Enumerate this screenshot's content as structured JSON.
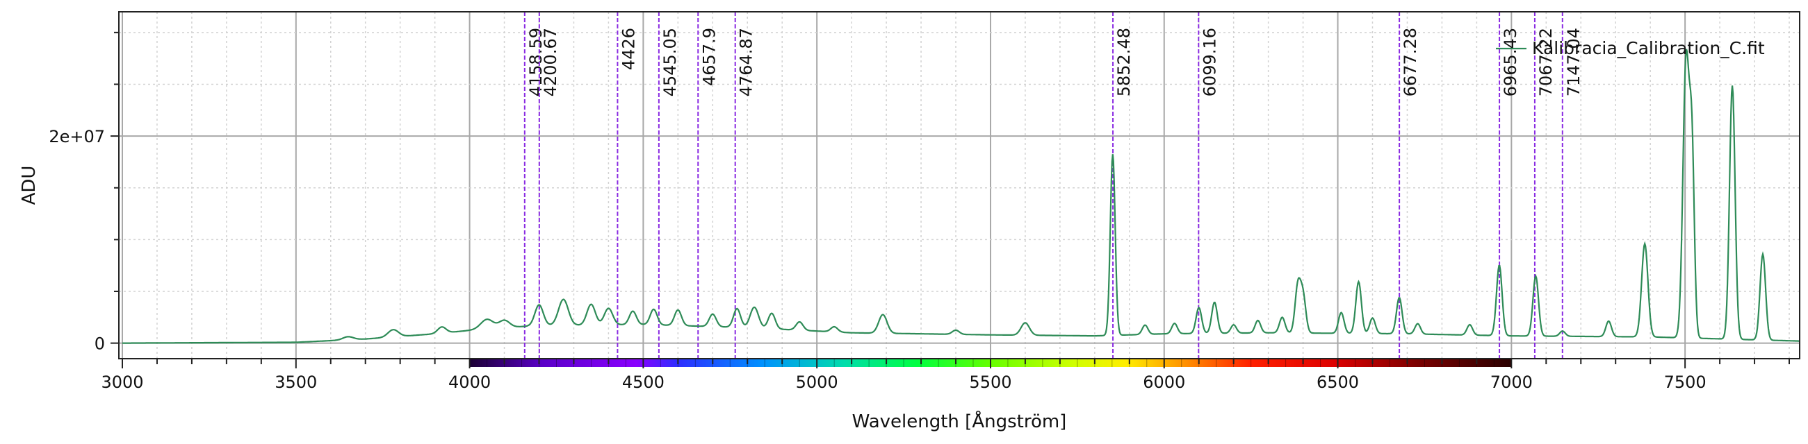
{
  "chart_data": {
    "type": "line",
    "xlabel": "Wavelength [Ångström]",
    "ylabel": "ADU",
    "xlim": [
      2990,
      7830
    ],
    "ylim": [
      -1500000,
      32000000
    ],
    "x_major_ticks": [
      3000,
      3500,
      4000,
      4500,
      5000,
      5500,
      6000,
      6500,
      7000,
      7500
    ],
    "x_tick_labels": [
      "3000",
      "3500",
      "4000",
      "4500",
      "5000",
      "5500",
      "6000",
      "6500",
      "7000",
      "7500"
    ],
    "y_major_ticks": [
      0,
      20000000
    ],
    "y_tick_labels": [
      "0",
      "2e+07"
    ],
    "grid": true,
    "legend_position": "top-right",
    "series": [
      {
        "name": "Kalibracia_Calibration_C.fit",
        "color": "#2e8b57",
        "baseline": [
          [
            3000,
            0
          ],
          [
            3500,
            80000
          ],
          [
            3700,
            400000
          ],
          [
            3900,
            900000
          ],
          [
            4050,
            1400000
          ],
          [
            4200,
            1700000
          ],
          [
            4500,
            1800000
          ],
          [
            4800,
            1500000
          ],
          [
            5100,
            1000000
          ],
          [
            5500,
            800000
          ],
          [
            5800,
            700000
          ],
          [
            6000,
            900000
          ],
          [
            6300,
            1000000
          ],
          [
            6700,
            900000
          ],
          [
            7000,
            700000
          ],
          [
            7400,
            600000
          ],
          [
            7830,
            200000
          ]
        ],
        "peaks": [
          [
            3650,
            300000,
            15
          ],
          [
            3780,
            700000,
            15
          ],
          [
            3920,
            600000,
            12
          ],
          [
            4050,
            900000,
            18
          ],
          [
            4100,
            700000,
            15
          ],
          [
            4200,
            2000000,
            12
          ],
          [
            4270,
            2500000,
            14
          ],
          [
            4350,
            2000000,
            12
          ],
          [
            4400,
            1600000,
            12
          ],
          [
            4470,
            1300000,
            10
          ],
          [
            4530,
            1500000,
            10
          ],
          [
            4600,
            1500000,
            10
          ],
          [
            4700,
            1200000,
            10
          ],
          [
            4770,
            1800000,
            10
          ],
          [
            4820,
            2000000,
            12
          ],
          [
            4870,
            1500000,
            10
          ],
          [
            4950,
            800000,
            10
          ],
          [
            5050,
            500000,
            10
          ],
          [
            5190,
            1800000,
            12
          ],
          [
            5400,
            400000,
            10
          ],
          [
            5600,
            1200000,
            12
          ],
          [
            5852,
            17500000,
            7
          ],
          [
            5945,
            900000,
            8
          ],
          [
            6030,
            1000000,
            8
          ],
          [
            6100,
            2500000,
            8
          ],
          [
            6145,
            3000000,
            8
          ],
          [
            6200,
            800000,
            8
          ],
          [
            6270,
            1200000,
            8
          ],
          [
            6340,
            1500000,
            8
          ],
          [
            6385,
            4500000,
            8
          ],
          [
            6400,
            3500000,
            8
          ],
          [
            6510,
            2000000,
            8
          ],
          [
            6560,
            5000000,
            8
          ],
          [
            6600,
            1500000,
            8
          ],
          [
            6677,
            3500000,
            8
          ],
          [
            6730,
            1000000,
            8
          ],
          [
            6880,
            1000000,
            8
          ],
          [
            6965,
            6800000,
            8
          ],
          [
            7070,
            5800000,
            8
          ],
          [
            7147,
            500000,
            8
          ],
          [
            7280,
            1500000,
            8
          ],
          [
            7384,
            9000000,
            9
          ],
          [
            7503,
            26800000,
            9
          ],
          [
            7520,
            17000000,
            7
          ],
          [
            7636,
            24500000,
            8
          ],
          [
            7724,
            8300000,
            8
          ]
        ]
      }
    ],
    "vertical_markers": [
      {
        "x": 4158.59,
        "label": "4158.59"
      },
      {
        "x": 4200.67,
        "label": "4200.67"
      },
      {
        "x": 4426,
        "label": "4426"
      },
      {
        "x": 4545.05,
        "label": "4545.05"
      },
      {
        "x": 4657.9,
        "label": "4657.9"
      },
      {
        "x": 4764.87,
        "label": "4764.87"
      },
      {
        "x": 5852.48,
        "label": "5852.48"
      },
      {
        "x": 6099.16,
        "label": "6099.16"
      },
      {
        "x": 6677.28,
        "label": "6677.28"
      },
      {
        "x": 6965.43,
        "label": "6965.43"
      },
      {
        "x": 7067.22,
        "label": "7067.22"
      },
      {
        "x": 7147.04,
        "label": "7147.04"
      }
    ],
    "marker_color": "#8a2be2",
    "colorbar": {
      "from": 4000,
      "to": 7000
    }
  }
}
